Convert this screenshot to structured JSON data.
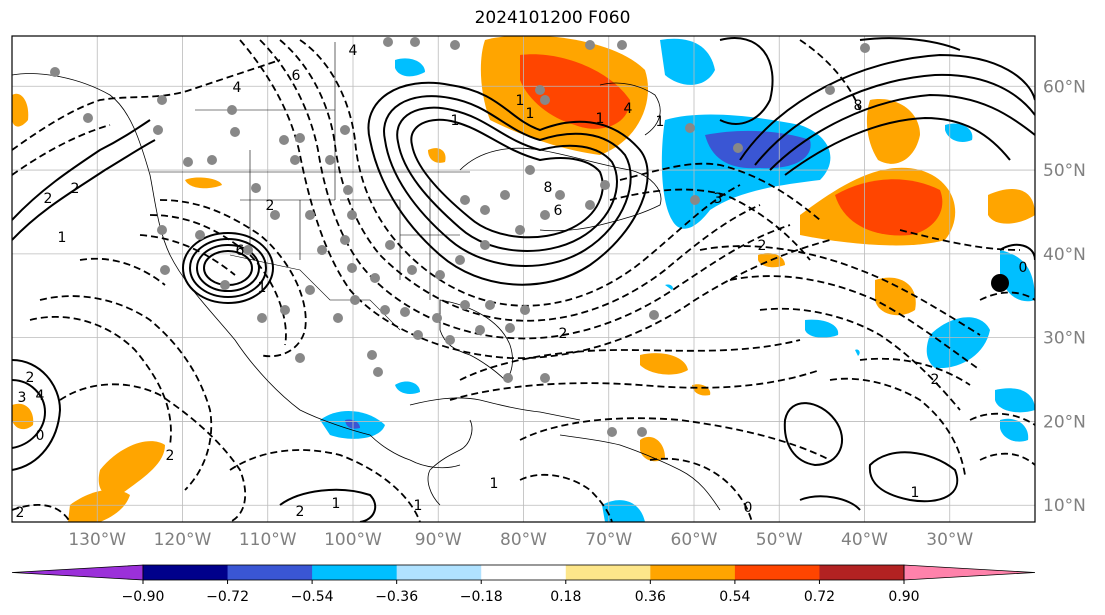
{
  "title": "2024101200 F060",
  "map": {
    "projection": "cylindrical",
    "lon_range": [
      -140,
      -20
    ],
    "lat_range": [
      8,
      66
    ],
    "grid": true,
    "lon_labels": [
      "130°W",
      "120°W",
      "110°W",
      "100°W",
      "90°W",
      "80°W",
      "70°W",
      "60°W",
      "50°W",
      "40°W",
      "30°W"
    ],
    "lon_values": [
      -130,
      -120,
      -110,
      -100,
      -90,
      -80,
      -70,
      -60,
      -50,
      -40,
      -30
    ],
    "lat_labels": [
      "60°N",
      "50°N",
      "40°N",
      "30°N",
      "20°N",
      "10°N"
    ],
    "lat_values": [
      60,
      50,
      40,
      30,
      20,
      10
    ],
    "label_color": "#808080"
  },
  "colorbar": {
    "tick_labels": [
      "−0.90",
      "−0.72",
      "−0.54",
      "−0.36",
      "−0.18",
      "0.18",
      "0.36",
      "0.54",
      "0.72",
      "0.90"
    ],
    "colors": [
      "#9b30d9",
      "#00008b",
      "#3a56d4",
      "#00bfff",
      "#b0e2ff",
      "#ffffff",
      "#fde68a",
      "#ffa500",
      "#ff4500",
      "#b22222",
      "#ff82ab"
    ],
    "extend": "both"
  },
  "contour_labels": [
    "2",
    "1",
    "2",
    "4",
    "6",
    "8",
    "8",
    "6",
    "2",
    "2",
    "3",
    "4",
    "2",
    "1",
    "6",
    "4",
    "3",
    "4",
    "1",
    "2",
    "2",
    "1",
    "1",
    "2",
    "2",
    "0",
    "0",
    "0",
    "1",
    "1",
    "1",
    "1",
    "1",
    "1",
    "2"
  ]
}
